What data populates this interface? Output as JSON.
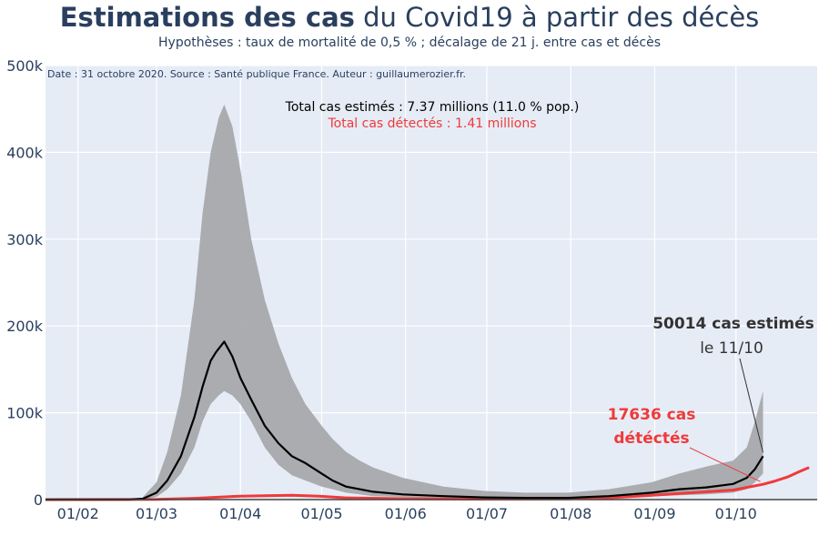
{
  "title": {
    "bold": "Estimations des cas",
    "rest": " du Covid19 à partir des décès"
  },
  "subtitle": "Hypothèses : taux de mortalité de 0,5 % ; décalage de 21 j. entre cas et décès",
  "source_note": "Date : 31 octobre 2020. Source : Santé publique France. Auteur : guillaumerozier.fr.",
  "totals": {
    "estimated": "Total cas estimés : 7.37 millions (11.0 % pop.)",
    "detected": "Total cas détectés : 1.41 millions"
  },
  "annotations": {
    "estimated_value": "50014 cas estimés",
    "estimated_date": "le 11/10",
    "detected_line1": "17636 cas",
    "detected_line2": "détéctés"
  },
  "colors": {
    "plot_bg": "#e5ecf6",
    "band": "#a7a9ac",
    "estimated": "#000000",
    "detected": "#ef3a3a",
    "text": "#2a3f5f"
  },
  "chart_data": {
    "type": "area",
    "x_axis": {
      "ticks": [
        "01/02",
        "01/03",
        "01/04",
        "01/05",
        "01/06",
        "01/07",
        "01/08",
        "01/09",
        "01/10"
      ],
      "range": [
        "2020-01-20",
        "2020-10-31"
      ]
    },
    "y_axis": {
      "ticks": [
        "0",
        "100k",
        "200k",
        "300k",
        "400k",
        "500k"
      ],
      "range": [
        0,
        500000
      ]
    },
    "grid": true,
    "series": [
      {
        "kind": "band",
        "x": [
          "2020-02-25",
          "2020-03-01",
          "2020-03-05",
          "2020-03-10",
          "2020-03-15",
          "2020-03-18",
          "2020-03-21",
          "2020-03-24",
          "2020-03-26",
          "2020-03-29",
          "2020-04-01",
          "2020-04-05",
          "2020-04-10",
          "2020-04-15",
          "2020-04-20",
          "2020-04-25",
          "2020-05-01",
          "2020-05-05",
          "2020-05-10",
          "2020-05-15",
          "2020-05-20",
          "2020-05-31",
          "2020-06-15",
          "2020-06-30",
          "2020-07-15",
          "2020-07-31",
          "2020-08-15",
          "2020-08-31",
          "2020-09-10",
          "2020-09-20",
          "2020-09-30",
          "2020-10-05",
          "2020-10-08",
          "2020-10-11"
        ],
        "upper": [
          3000,
          20000,
          55000,
          120000,
          230000,
          330000,
          400000,
          440000,
          455000,
          430000,
          380000,
          300000,
          230000,
          180000,
          140000,
          110000,
          85000,
          70000,
          55000,
          45000,
          37000,
          25000,
          15000,
          10000,
          8000,
          8000,
          12000,
          20000,
          30000,
          38000,
          45000,
          60000,
          90000,
          125000
        ],
        "lower": [
          0,
          3000,
          12000,
          30000,
          60000,
          90000,
          110000,
          120000,
          125000,
          120000,
          110000,
          90000,
          60000,
          40000,
          28000,
          22000,
          15000,
          12000,
          8000,
          6000,
          4000,
          3000,
          2000,
          1500,
          1000,
          1000,
          2000,
          4000,
          5000,
          6000,
          8000,
          12000,
          20000,
          30000
        ]
      },
      {
        "name": "cas estimés",
        "x": [
          "2020-01-20",
          "2020-02-20",
          "2020-02-25",
          "2020-03-01",
          "2020-03-05",
          "2020-03-10",
          "2020-03-15",
          "2020-03-18",
          "2020-03-21",
          "2020-03-23",
          "2020-03-26",
          "2020-03-29",
          "2020-04-01",
          "2020-04-05",
          "2020-04-10",
          "2020-04-15",
          "2020-04-20",
          "2020-04-25",
          "2020-05-01",
          "2020-05-05",
          "2020-05-10",
          "2020-05-15",
          "2020-05-20",
          "2020-05-31",
          "2020-06-15",
          "2020-06-30",
          "2020-07-15",
          "2020-07-31",
          "2020-08-15",
          "2020-08-31",
          "2020-09-10",
          "2020-09-20",
          "2020-09-30",
          "2020-10-05",
          "2020-10-08",
          "2020-10-11"
        ],
        "y": [
          0,
          0,
          1000,
          8000,
          22000,
          50000,
          95000,
          130000,
          160000,
          170000,
          182000,
          165000,
          140000,
          115000,
          85000,
          65000,
          50000,
          42000,
          30000,
          22000,
          15000,
          12000,
          9000,
          6000,
          4000,
          2500,
          2000,
          2000,
          4000,
          8000,
          12000,
          14000,
          18000,
          25000,
          35000,
          50014
        ]
      },
      {
        "name": "cas détectés",
        "x": [
          "2020-01-20",
          "2020-03-01",
          "2020-03-15",
          "2020-04-01",
          "2020-04-10",
          "2020-04-20",
          "2020-04-30",
          "2020-05-10",
          "2020-05-31",
          "2020-06-30",
          "2020-07-31",
          "2020-08-15",
          "2020-08-31",
          "2020-09-15",
          "2020-09-30",
          "2020-10-11",
          "2020-10-15",
          "2020-10-20",
          "2020-10-25",
          "2020-10-28"
        ],
        "y": [
          0,
          200,
          1500,
          4000,
          4500,
          5000,
          4000,
          2000,
          1000,
          500,
          800,
          2000,
          5000,
          8000,
          11000,
          17636,
          21000,
          26000,
          33000,
          37000
        ]
      }
    ]
  }
}
